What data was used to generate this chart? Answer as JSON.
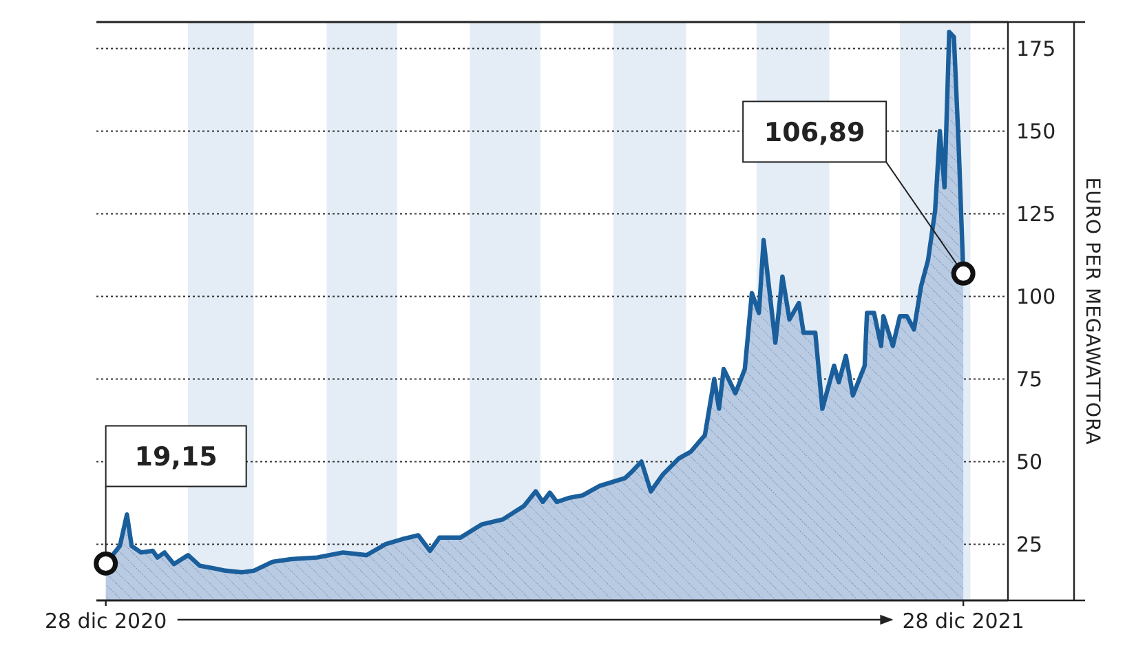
{
  "chart_data": {
    "type": "area",
    "ylabel": "EURO PER MEGAWATTORA",
    "x": [
      "2020-12-28",
      "2021-01-03",
      "2021-01-06",
      "2021-01-08",
      "2021-01-12",
      "2021-01-17",
      "2021-01-19",
      "2021-01-22",
      "2021-01-26",
      "2021-02-01",
      "2021-02-06",
      "2021-02-12",
      "2021-02-17",
      "2021-02-24",
      "2021-03-01",
      "2021-03-09",
      "2021-03-17",
      "2021-03-28",
      "2021-04-08",
      "2021-04-18",
      "2021-04-26",
      "2021-05-03",
      "2021-05-10",
      "2021-05-15",
      "2021-05-19",
      "2021-05-28",
      "2021-06-06",
      "2021-06-15",
      "2021-06-24",
      "2021-06-29",
      "2021-07-02",
      "2021-07-05",
      "2021-07-08",
      "2021-07-13",
      "2021-07-19",
      "2021-07-26",
      "2021-08-06",
      "2021-08-09",
      "2021-08-13",
      "2021-08-17",
      "2021-08-22",
      "2021-08-29",
      "2021-09-03",
      "2021-09-09",
      "2021-09-13",
      "2021-09-15",
      "2021-09-17",
      "2021-09-22",
      "2021-09-26",
      "2021-09-29",
      "2021-10-02",
      "2021-10-04",
      "2021-10-09",
      "2021-10-12",
      "2021-10-15",
      "2021-10-19",
      "2021-10-21",
      "2021-10-26",
      "2021-10-29",
      "2021-11-03",
      "2021-11-05",
      "2021-11-08",
      "2021-11-11",
      "2021-11-16",
      "2021-11-17",
      "2021-11-20",
      "2021-11-23",
      "2021-11-24",
      "2021-11-28",
      "2021-12-01",
      "2021-12-04",
      "2021-12-07",
      "2021-12-10",
      "2021-12-13",
      "2021-12-16",
      "2021-12-18",
      "2021-12-20",
      "2021-12-22",
      "2021-12-24",
      "2021-12-26",
      "2021-12-28"
    ],
    "series": [
      {
        "color": "#1a5f9c",
        "values": [
          19.15,
          24.5,
          34,
          24.5,
          22.5,
          23,
          21,
          22.5,
          19,
          21.7,
          18.5,
          17.7,
          17,
          16.5,
          17,
          19.7,
          20.5,
          21,
          22.5,
          21.7,
          25,
          26.5,
          27.7,
          23,
          27,
          27,
          31,
          32.5,
          36.6,
          41,
          37.8,
          40.6,
          37.8,
          39,
          39.8,
          42.6,
          45,
          47,
          50,
          41,
          46,
          51,
          53,
          58,
          75,
          66,
          78,
          70.7,
          78,
          101,
          95,
          117,
          86,
          106,
          93,
          98,
          89,
          89,
          66,
          79,
          74,
          82,
          70,
          79,
          95,
          95,
          85,
          94,
          85,
          94,
          94,
          90,
          103,
          111,
          126,
          150,
          133,
          180,
          178.5,
          146,
          106.89
        ]
      }
    ],
    "xlim": [
      "2020-12-24",
      "2022-01-16"
    ],
    "xticks": [
      {
        "value": "2020-12-28",
        "label": "28 dic 2020"
      },
      {
        "value": "2021-12-28",
        "label": "28 dic 2021"
      }
    ],
    "ylim": [
      8,
      183
    ],
    "yticks": [
      25,
      50,
      75,
      100,
      125,
      150,
      175
    ],
    "grid": "y",
    "line_style": "solid",
    "bands": [
      {
        "axis": "x",
        "from": "2021-02-01",
        "to": "2021-03-01",
        "color": "#e4edf6"
      },
      {
        "axis": "x",
        "from": "2021-04-01",
        "to": "2021-05-01",
        "color": "#e4edf6"
      },
      {
        "axis": "x",
        "from": "2021-06-01",
        "to": "2021-07-01",
        "color": "#e4edf6"
      },
      {
        "axis": "x",
        "from": "2021-08-01",
        "to": "2021-09-01",
        "color": "#e4edf6"
      },
      {
        "axis": "x",
        "from": "2021-10-01",
        "to": "2021-11-01",
        "color": "#e4edf6"
      },
      {
        "axis": "x",
        "from": "2021-12-01",
        "to": "2021-12-31",
        "color": "#e4edf6"
      }
    ],
    "annotations": [
      {
        "text": "19,15",
        "x": "2020-12-28",
        "y": 19.15
      },
      {
        "text": "106,89",
        "x": "2021-12-28",
        "y": 106.89
      }
    ]
  }
}
